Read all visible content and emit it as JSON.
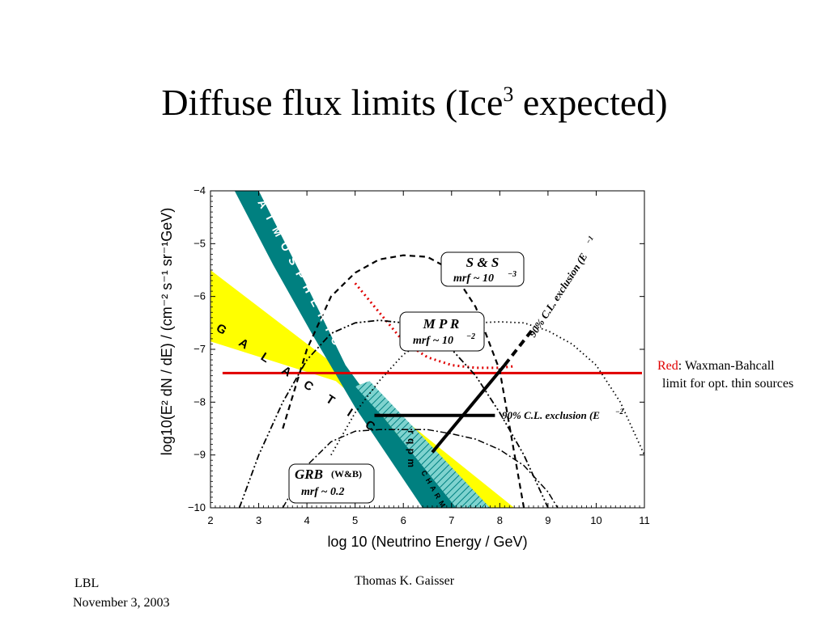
{
  "slide": {
    "title_main": "Diffuse flux limits (Ice",
    "title_sup": "3",
    "title_tail": " expected)",
    "footer_org": "LBL",
    "footer_date": "November 3, 2003",
    "footer_author": "Thomas K. Gaisser",
    "note_red_word": "Red",
    "note_line1": ": Waxman-Bahcall",
    "note_line2": "limit for opt. thin sources"
  },
  "chart_data": {
    "type": "line",
    "xlabel": "log 10 (Neutrino Energy / GeV)",
    "ylabel": "log10(E² dN / dE) / (cm⁻² s⁻¹ sr⁻¹GeV)",
    "xlim": [
      2,
      11
    ],
    "ylim": [
      -10,
      -4
    ],
    "x_ticks": [
      "2",
      "3",
      "4",
      "5",
      "6",
      "7",
      "8",
      "9",
      "10",
      "11"
    ],
    "y_ticks": [
      "−4",
      "−5",
      "−6",
      "−7",
      "−8",
      "−9",
      "−10"
    ],
    "colors": {
      "atmospheric": "#008080",
      "galactic": "#ffff00",
      "waxman_bahcall": "#e00000",
      "mpr_limit": "#e00000"
    },
    "bands": {
      "galactic_label": "G A L A C T I C",
      "atmospheric_label": "A T M O S P H E R I C",
      "charm_label": "C H A R M",
      "rqpm_label": "r q p m"
    },
    "labels": {
      "ss_title": "S & S",
      "ss_mrf": "mrf ~ 10",
      "ss_exp": "−3",
      "mpr_title": "M P R",
      "mpr_mrf": "mrf ~ 10",
      "mpr_exp": "−2",
      "grb_title": "GRB",
      "grb_ref": "(W&B)",
      "grb_mrf": "mrf  ~  0.2",
      "exclusion_e1": "90% C.L. exclusion (E",
      "exclusion_e1_exp": "−1",
      "exclusion_e2": "90% C.L. exclusion (E",
      "exclusion_e2_exp": "−2"
    },
    "series": [
      {
        "name": "Red: Waxman-Bahcall",
        "style": "solid-red",
        "x": [
          2.25,
          10.95
        ],
        "y": [
          -7.45,
          -7.45
        ]
      },
      {
        "name": "",
        "style": "dotted-red",
        "x": [
          5.0,
          5.5,
          6.0,
          6.5,
          7.0,
          7.5,
          8.0,
          8.3
        ],
        "y": [
          -5.75,
          -6.3,
          -6.85,
          -7.15,
          -7.3,
          -7.35,
          -7.35,
          -7.32
        ]
      },
      {
        "name": "S & S",
        "style": "dashed",
        "x": [
          3.5,
          4.0,
          4.5,
          5.0,
          5.5,
          6.0,
          6.5,
          7.0,
          7.5,
          8.0,
          8.5
        ],
        "y": [
          -8.5,
          -7.0,
          -6.0,
          -5.55,
          -5.3,
          -5.22,
          -5.25,
          -5.5,
          -6.2,
          -7.4,
          -10.0
        ]
      },
      {
        "name": "M P R",
        "style": "dotted",
        "x": [
          4.5,
          5.0,
          5.5,
          6.0,
          6.5,
          7.0,
          7.5,
          8.0,
          8.5,
          9.0,
          9.5,
          10.0,
          10.5,
          11.0
        ],
        "y": [
          -9.0,
          -8.2,
          -7.6,
          -7.1,
          -6.8,
          -6.6,
          -6.5,
          -6.48,
          -6.5,
          -6.65,
          -6.9,
          -7.3,
          -8.0,
          -9.0
        ]
      },
      {
        "name": "GRB",
        "style": "dash-dot",
        "x": [
          3.5,
          4.0,
          4.5,
          5.0,
          5.5,
          6.0,
          6.5,
          7.0,
          7.5,
          8.0,
          8.5,
          9.0,
          9.2
        ],
        "y": [
          -10.0,
          -9.2,
          -8.75,
          -8.55,
          -8.52,
          -8.52,
          -8.52,
          -8.6,
          -8.7,
          -8.9,
          -9.2,
          -9.7,
          -10.0
        ]
      },
      {
        "name": "",
        "style": "dash-dot-dot",
        "x": [
          2.6,
          3.0,
          3.5,
          4.0,
          4.5,
          5.0,
          5.5,
          6.0,
          6.5,
          7.0,
          7.5,
          8.0,
          8.5,
          9.0
        ],
        "y": [
          -10.0,
          -9.0,
          -8.0,
          -7.2,
          -6.7,
          -6.5,
          -6.45,
          -6.5,
          -6.7,
          -7.0,
          -7.5,
          -8.2,
          -9.0,
          -10.0
        ]
      },
      {
        "name": "90% C.L. exclusion (E⁻²)",
        "style": "thick-black",
        "x": [
          5.4,
          7.9
        ],
        "y": [
          -8.25,
          -8.25
        ]
      },
      {
        "name": "90% C.L. exclusion (E⁻¹)",
        "style": "thick-black",
        "x": [
          6.6,
          8.1
        ],
        "y": [
          -8.95,
          -7.3
        ]
      },
      {
        "name": "",
        "style": "thick-dashed-black",
        "x": [
          8.1,
          8.7
        ],
        "y": [
          -7.3,
          -6.6
        ]
      }
    ]
  }
}
